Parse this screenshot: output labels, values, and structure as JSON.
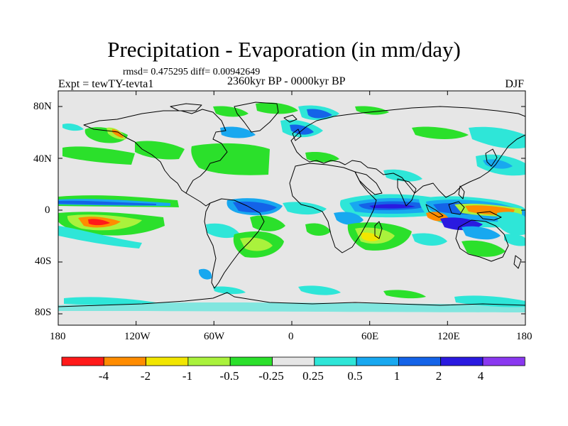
{
  "title": "Precipitation - Evaporation (in mm/day)",
  "stats": "rmsd= 0.475295 diff= 0.00942649",
  "experiment": "Expt = tewTY-tevta1",
  "period": "2360kyr BP - 0000kyr BP",
  "season": "DJF",
  "axes": {
    "lon_ticks": [
      "180",
      "120W",
      "60W",
      "0",
      "60E",
      "120E",
      "180"
    ],
    "lat_ticks": [
      "80N",
      "40N",
      "0",
      "40S",
      "80S"
    ]
  },
  "colorbar": {
    "labels": [
      "-4",
      "-2",
      "-1",
      "-0.5",
      "-0.25",
      "0.25",
      "0.5",
      "1",
      "2",
      "4"
    ],
    "colors": [
      "#ff1a1a",
      "#ff8c00",
      "#f2e600",
      "#aaf23c",
      "#2be02b",
      "#e6e6e6",
      "#2ee6d8",
      "#18a8f0",
      "#1463e8",
      "#2a1ae0",
      "#8a38f0"
    ]
  },
  "palette": {
    "ocean": "#e6e6e6",
    "coast": "#000000"
  }
}
